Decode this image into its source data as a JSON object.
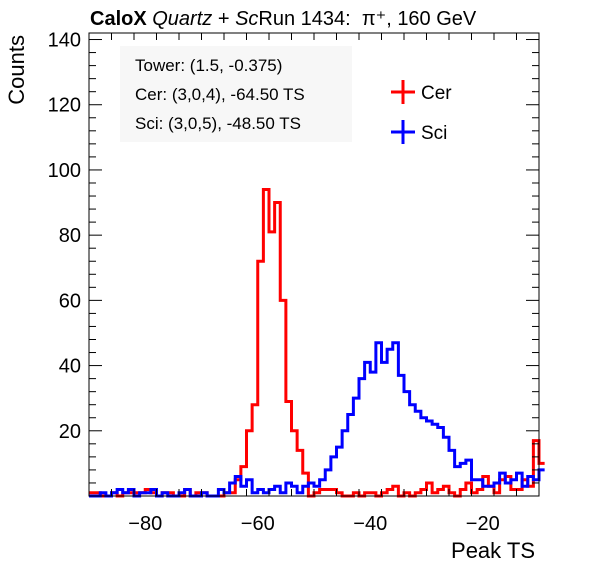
{
  "title": {
    "experiment": "CaloX",
    "detector_italic_1": "Quartz",
    "plus": " + ",
    "detector_italic_2": "Sc",
    "run_text": "Run 1434:",
    "particle": "π⁺, 160 GeV"
  },
  "chart_data": {
    "type": "line",
    "style": "step-histogram",
    "xlabel": "Peak TS",
    "ylabel": "Counts",
    "xlim": [
      -90,
      -10
    ],
    "ylim": [
      0,
      142
    ],
    "x_ticks": [
      -80,
      -60,
      -40,
      -20
    ],
    "y_ticks": [
      20,
      40,
      60,
      80,
      100,
      120,
      140
    ],
    "grid": false,
    "annotations": [
      "Tower: (1.5, -0.375)",
      "Cer: (3,0,4), -64.50 TS",
      "Sci: (3,0,5), -48.50 TS"
    ],
    "legend": {
      "placement": "top-right",
      "entries": [
        "Cer",
        "Sci"
      ]
    },
    "colors": {
      "Cer": "#ff0000",
      "Sci": "#0000ff"
    },
    "bin_edges_start": -90,
    "bin_width": 1,
    "series": [
      {
        "name": "Cer",
        "values": [
          1,
          1,
          0,
          0,
          1,
          0,
          1,
          1,
          1,
          1,
          2,
          1,
          0,
          1,
          1,
          0,
          0,
          2,
          0,
          1,
          1,
          0,
          0,
          0,
          1,
          1,
          5,
          9,
          20,
          28,
          72,
          94,
          81,
          90,
          60,
          29,
          20,
          14,
          7,
          0,
          1,
          2,
          2,
          2,
          1,
          0,
          0,
          1,
          0,
          1,
          1,
          0,
          1,
          2,
          3,
          0,
          1,
          0,
          1,
          2,
          4,
          1,
          2,
          3,
          1,
          0,
          2,
          4,
          1,
          2,
          6,
          3,
          1,
          5,
          6,
          2,
          2,
          5,
          3,
          17,
          10
        ]
      },
      {
        "name": "Sci",
        "values": [
          0,
          0,
          1,
          0,
          1,
          2,
          1,
          2,
          0,
          1,
          1,
          2,
          0,
          1,
          0,
          0,
          1,
          2,
          0,
          0,
          1,
          0,
          0,
          2,
          1,
          4,
          6,
          3,
          5,
          1,
          2,
          1,
          2,
          3,
          1,
          4,
          3,
          1,
          3,
          4,
          3,
          5,
          8,
          12,
          15,
          20,
          25,
          30,
          36,
          41,
          38,
          47,
          41,
          45,
          47,
          37,
          32,
          28,
          26,
          24,
          23,
          22,
          21,
          18,
          14,
          9,
          10,
          11,
          5,
          5,
          3,
          3,
          4,
          7,
          4,
          5,
          7,
          3,
          6,
          5,
          8
        ]
      }
    ]
  }
}
